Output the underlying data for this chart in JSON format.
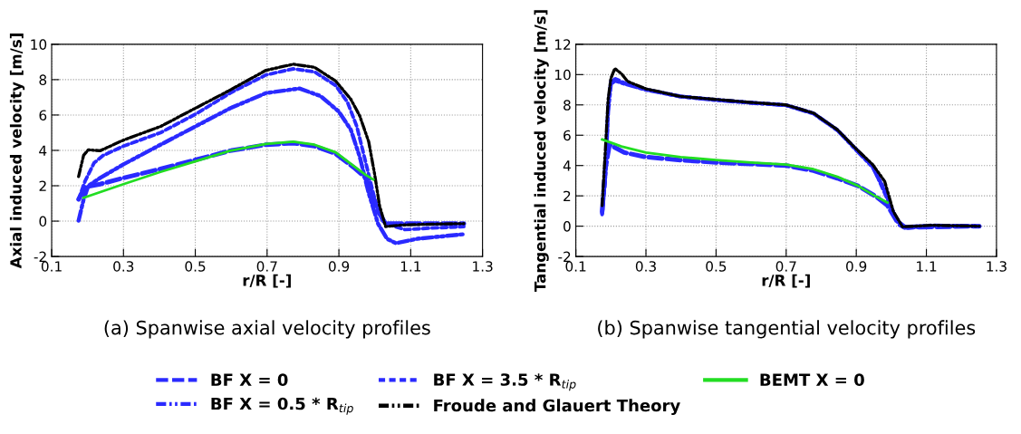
{
  "chart_data": [
    {
      "type": "line",
      "ylabel": "Axial induced velocity [m/s]",
      "xlabel": "r/R [-]",
      "annotations": [
        "(a) Spanwise axial velocity profiles"
      ],
      "xlim": [
        0.1,
        1.3
      ],
      "xticks": [
        0.1,
        0.3,
        0.5,
        0.7,
        0.9,
        1.1,
        1.3
      ],
      "ylim": [
        -2,
        10
      ],
      "yticks": [
        -2,
        0,
        2,
        4,
        6,
        8,
        10
      ],
      "grid": true,
      "legend": "bottom",
      "marker": "none",
      "series": [
        {
          "name": "BF X = 0",
          "color": "#2a2aff",
          "line_style": "longdash",
          "x": [
            0.175,
            0.193,
            0.235,
            0.3,
            0.403,
            0.5,
            0.597,
            0.697,
            0.773,
            0.832,
            0.891,
            0.941,
            0.975,
            0.992,
            1.009,
            1.03,
            1.076,
            1.248
          ],
          "values": [
            1.23,
            1.92,
            2.09,
            2.44,
            2.95,
            3.46,
            3.98,
            4.32,
            4.41,
            4.24,
            3.81,
            3.04,
            2.44,
            1.58,
            0.55,
            -0.14,
            -0.14,
            -0.14
          ]
        },
        {
          "name": "BF X = 0.5 * R$_{tip}$",
          "color": "#2a2aff",
          "line_style": "dashdotdot",
          "x": [
            0.175,
            0.189,
            0.202,
            0.235,
            0.3,
            0.403,
            0.5,
            0.597,
            0.697,
            0.79,
            0.849,
            0.899,
            0.933,
            0.958,
            0.983,
            1.009,
            1.034,
            1.059,
            1.118,
            1.248
          ],
          "values": [
            0.03,
            1.23,
            2.0,
            2.44,
            3.21,
            4.32,
            5.35,
            6.38,
            7.24,
            7.5,
            7.07,
            6.21,
            5.18,
            3.64,
            1.58,
            -0.14,
            -1.0,
            -1.25,
            -1.0,
            -0.74
          ]
        },
        {
          "name": "BF X = 3.5 * R$_{tip}$",
          "color": "#2a2aff",
          "line_style": "dashed",
          "x": [
            0.175,
            0.193,
            0.218,
            0.244,
            0.3,
            0.403,
            0.5,
            0.597,
            0.697,
            0.773,
            0.832,
            0.891,
            0.924,
            0.95,
            0.975,
            1.0,
            1.021,
            1.042,
            1.084,
            1.16,
            1.248
          ],
          "values": [
            1.23,
            2.26,
            3.29,
            3.72,
            4.24,
            5.0,
            6.04,
            7.24,
            8.27,
            8.61,
            8.44,
            7.67,
            6.72,
            5.35,
            3.29,
            1.23,
            0.03,
            -0.22,
            -0.48,
            -0.39,
            -0.31
          ]
        },
        {
          "name": "Froude and Glauert Theory",
          "color": "#000000",
          "line_style": "dashdotdot",
          "x": [
            0.175,
            0.189,
            0.202,
            0.235,
            0.3,
            0.403,
            0.5,
            0.597,
            0.697,
            0.773,
            0.832,
            0.891,
            0.933,
            0.958,
            0.983,
            1.0,
            1.013,
            1.03,
            1.076,
            1.16,
            1.248
          ],
          "values": [
            2.52,
            3.72,
            4.03,
            3.98,
            4.58,
            5.35,
            6.38,
            7.41,
            8.53,
            8.87,
            8.7,
            7.92,
            6.9,
            5.95,
            4.49,
            2.6,
            0.89,
            -0.31,
            -0.22,
            -0.17,
            -0.14
          ]
        },
        {
          "name": "BEMT X = 0",
          "color": "#22dd22",
          "line_style": "solid",
          "x": [
            0.189,
            0.3,
            0.403,
            0.5,
            0.597,
            0.697,
            0.773,
            0.832,
            0.891,
            0.941,
            0.975,
            0.996
          ],
          "values": [
            1.32,
            2.09,
            2.78,
            3.38,
            3.98,
            4.36,
            4.49,
            4.32,
            3.89,
            3.12,
            2.61,
            2.35
          ]
        }
      ]
    },
    {
      "type": "line",
      "ylabel": "Tangential induced velocity [m/s]",
      "xlabel": "r/R [-]",
      "annotations": [
        "(b) Spanwise tangential velocity profiles"
      ],
      "xlim": [
        0.1,
        1.3
      ],
      "xticks": [
        0.1,
        0.3,
        0.5,
        0.7,
        0.9,
        1.1,
        1.3
      ],
      "ylim": [
        -2,
        12
      ],
      "yticks": [
        -2,
        0,
        2,
        4,
        6,
        8,
        10,
        12
      ],
      "grid": true,
      "marker": "none",
      "series": [
        {
          "color": "#2a2aff",
          "line_style": "longdash",
          "x": [
            0.175,
            0.184,
            0.196,
            0.209,
            0.238,
            0.3,
            0.399,
            0.5,
            0.601,
            0.7,
            0.778,
            0.846,
            0.905,
            0.956,
            0.989,
            1.015,
            1.04,
            1.251
          ],
          "values": [
            0.96,
            3.76,
            5.36,
            5.22,
            4.86,
            4.56,
            4.36,
            4.2,
            4.1,
            4.0,
            3.66,
            3.16,
            2.66,
            1.96,
            1.36,
            0.36,
            -0.08,
            0.0
          ]
        },
        {
          "color": "#2a2aff",
          "line_style": "dashdotdot",
          "x": [
            0.175,
            0.184,
            0.192,
            0.2,
            0.213,
            0.238,
            0.3,
            0.399,
            0.5,
            0.601,
            0.7,
            0.778,
            0.846,
            0.897,
            0.947,
            0.985,
            1.01,
            1.035,
            1.116,
            1.251
          ],
          "values": [
            0.86,
            3.5,
            7.6,
            9.4,
            9.6,
            9.4,
            9.0,
            8.56,
            8.32,
            8.14,
            7.98,
            7.44,
            6.34,
            5.1,
            3.9,
            2.2,
            0.6,
            -0.06,
            0.04,
            0.0
          ]
        },
        {
          "color": "#2a2aff",
          "line_style": "dashed",
          "x": [
            0.175,
            0.184,
            0.192,
            0.2,
            0.213,
            0.238,
            0.3,
            0.399,
            0.5,
            0.601,
            0.7,
            0.778,
            0.846,
            0.897,
            0.947,
            0.989,
            1.023,
            1.04,
            1.116,
            1.251
          ],
          "values": [
            0.76,
            2.96,
            7.76,
            9.56,
            9.72,
            9.46,
            9.02,
            8.54,
            8.34,
            8.14,
            7.98,
            7.44,
            6.34,
            5.14,
            3.96,
            1.76,
            0.06,
            -0.14,
            0.02,
            0.0
          ]
        },
        {
          "color": "#000000",
          "line_style": "dashdotdot",
          "x": [
            0.175,
            0.184,
            0.192,
            0.2,
            0.211,
            0.23,
            0.247,
            0.3,
            0.399,
            0.5,
            0.601,
            0.7,
            0.778,
            0.846,
            0.897,
            0.947,
            0.981,
            1.006,
            1.032,
            1.116,
            1.251
          ],
          "values": [
            1.36,
            4.96,
            8.36,
            9.76,
            10.4,
            10.06,
            9.56,
            9.06,
            8.56,
            8.36,
            8.16,
            8.0,
            7.46,
            6.36,
            5.16,
            4.06,
            2.96,
            0.96,
            -0.04,
            0.06,
            0.0
          ]
        },
        {
          "color": "#22dd22",
          "line_style": "solid",
          "x": [
            0.175,
            0.23,
            0.3,
            0.399,
            0.5,
            0.601,
            0.7,
            0.778,
            0.846,
            0.905,
            0.956,
            0.989
          ],
          "values": [
            5.72,
            5.26,
            4.86,
            4.56,
            4.36,
            4.2,
            4.06,
            3.76,
            3.26,
            2.66,
            1.96,
            1.56
          ]
        }
      ]
    }
  ]
}
